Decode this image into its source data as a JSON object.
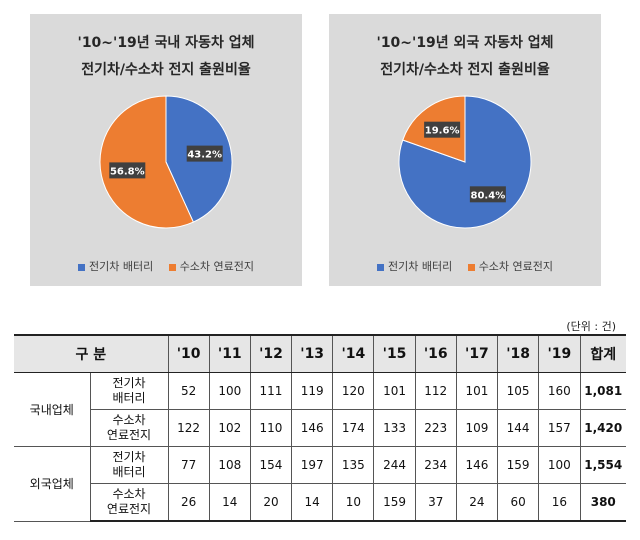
{
  "chart_data": [
    {
      "type": "pie",
      "title_lines": [
        "'10~'19년 국내 자동차 업체",
        "전기차/수소차 전지 출원비율"
      ],
      "slices": [
        {
          "label": "전기차 배터리",
          "value": 43.2,
          "display": "43.2%",
          "color": "#4472C4"
        },
        {
          "label": "수소차 연료전지",
          "value": 56.8,
          "display": "56.8%",
          "color": "#ED7D31"
        }
      ]
    },
    {
      "type": "pie",
      "title_lines": [
        "'10~'19년 외국 자동차 업체",
        "전기차/수소차 전지 출원비율"
      ],
      "slices": [
        {
          "label": "전기차 배터리",
          "value": 80.4,
          "display": "80.4%",
          "color": "#4472C4"
        },
        {
          "label": "수소차 연료전지",
          "value": 19.6,
          "display": "19.6%",
          "color": "#ED7D31"
        }
      ]
    }
  ],
  "table": {
    "unit_note": "(단위 : 건)",
    "header": {
      "category": "구 분",
      "years": [
        "'10",
        "'11",
        "'12",
        "'13",
        "'14",
        "'15",
        "'16",
        "'17",
        "'18",
        "'19"
      ],
      "total": "합계"
    },
    "groups": [
      {
        "name": "국내업체",
        "rows": [
          {
            "sub": [
              "전기차",
              "배터리"
            ],
            "values": [
              "52",
              "100",
              "111",
              "119",
              "120",
              "101",
              "112",
              "101",
              "105",
              "160"
            ],
            "total": "1,081"
          },
          {
            "sub": [
              "수소차",
              "연료전지"
            ],
            "values": [
              "122",
              "102",
              "110",
              "146",
              "174",
              "133",
              "223",
              "109",
              "144",
              "157"
            ],
            "total": "1,420"
          }
        ]
      },
      {
        "name": "외국업체",
        "rows": [
          {
            "sub": [
              "전기차",
              "배터리"
            ],
            "values": [
              "77",
              "108",
              "154",
              "197",
              "135",
              "244",
              "234",
              "146",
              "159",
              "100"
            ],
            "total": "1,554"
          },
          {
            "sub": [
              "수소차",
              "연료전지"
            ],
            "values": [
              "26",
              "14",
              "20",
              "14",
              "10",
              "159",
              "37",
              "24",
              "60",
              "16"
            ],
            "total": "380"
          }
        ]
      }
    ]
  }
}
